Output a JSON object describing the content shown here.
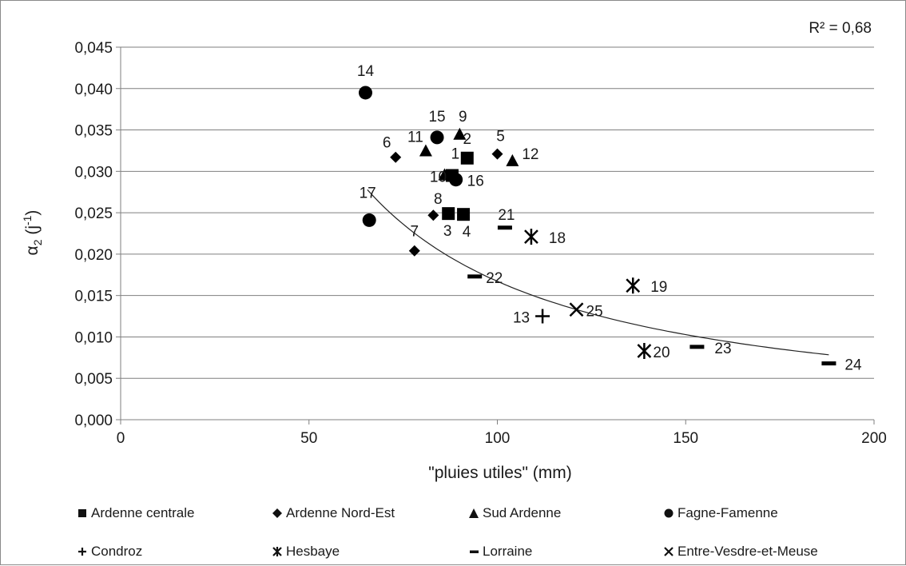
{
  "chart_data": {
    "type": "scatter",
    "xlabel": "\"pluies utiles\" (mm)",
    "ylabel_main": "α",
    "ylabel_sub": "2",
    "ylabel_unit": " (j",
    "ylabel_sup": "-1",
    "ylabel_close": ")",
    "xlim": [
      0,
      200
    ],
    "ylim": [
      0,
      0.045
    ],
    "x_ticks": [
      {
        "value": 0,
        "label": "0"
      },
      {
        "value": 50,
        "label": "50"
      },
      {
        "value": 100,
        "label": "100"
      },
      {
        "value": 150,
        "label": "150"
      },
      {
        "value": 200,
        "label": "200"
      }
    ],
    "y_ticks": [
      {
        "value": 0,
        "label": "0,000"
      },
      {
        "value": 0.005,
        "label": "0,005"
      },
      {
        "value": 0.01,
        "label": "0,010"
      },
      {
        "value": 0.015,
        "label": "0,015"
      },
      {
        "value": 0.02,
        "label": "0,020"
      },
      {
        "value": 0.025,
        "label": "0,025"
      },
      {
        "value": 0.03,
        "label": "0,030"
      },
      {
        "value": 0.035,
        "label": "0,035"
      },
      {
        "value": 0.04,
        "label": "0,040"
      },
      {
        "value": 0.045,
        "label": "0,045"
      }
    ],
    "grid": "horizontal",
    "legend_position": "bottom",
    "r_squared_label": "R² = 0,68",
    "series": [
      {
        "name": "Ardenne centrale",
        "marker": "square",
        "points": [
          {
            "x": 92,
            "y": 0.0316,
            "label": "2"
          },
          {
            "x": 88,
            "y": 0.0295,
            "label": "1"
          },
          {
            "x": 87,
            "y": 0.0249,
            "label": "3"
          },
          {
            "x": 91,
            "y": 0.0248,
            "label": "4"
          }
        ]
      },
      {
        "name": "Ardenne Nord-Est",
        "marker": "diamond",
        "points": [
          {
            "x": 100,
            "y": 0.0321,
            "label": "5"
          },
          {
            "x": 73,
            "y": 0.0317,
            "label": "6"
          },
          {
            "x": 78,
            "y": 0.0204,
            "label": "7"
          },
          {
            "x": 83,
            "y": 0.0247,
            "label": "8"
          }
        ]
      },
      {
        "name": "Sud Ardenne",
        "marker": "triangle",
        "points": [
          {
            "x": 90,
            "y": 0.0344,
            "label": "9"
          },
          {
            "x": 86,
            "y": 0.0295,
            "label": "10"
          },
          {
            "x": 81,
            "y": 0.0324,
            "label": "11"
          },
          {
            "x": 104,
            "y": 0.0312,
            "label": "12"
          }
        ]
      },
      {
        "name": "Fagne-Famenne",
        "marker": "circle",
        "points": [
          {
            "x": 65,
            "y": 0.0395,
            "label": "14"
          },
          {
            "x": 84,
            "y": 0.0341,
            "label": "15"
          },
          {
            "x": 89,
            "y": 0.029,
            "label": "16"
          },
          {
            "x": 66,
            "y": 0.0241,
            "label": "17"
          }
        ]
      },
      {
        "name": "Condroz",
        "marker": "plus",
        "points": [
          {
            "x": 112,
            "y": 0.0125,
            "label": "13"
          }
        ]
      },
      {
        "name": "Hesbaye",
        "marker": "asterisk",
        "points": [
          {
            "x": 109,
            "y": 0.0221,
            "label": "18"
          },
          {
            "x": 136,
            "y": 0.0162,
            "label": "19"
          },
          {
            "x": 139,
            "y": 0.0083,
            "label": "20"
          }
        ]
      },
      {
        "name": "Lorraine",
        "marker": "dash",
        "points": [
          {
            "x": 102,
            "y": 0.0232,
            "label": "21"
          },
          {
            "x": 94,
            "y": 0.0173,
            "label": "22"
          },
          {
            "x": 153,
            "y": 0.0088,
            "label": "23"
          },
          {
            "x": 188,
            "y": 0.0068,
            "label": "24"
          }
        ]
      },
      {
        "name": "Entre-Vesdre-et-Meuse",
        "marker": "x",
        "points": [
          {
            "x": 121,
            "y": 0.0133,
            "label": "25"
          }
        ]
      }
    ],
    "trendline": {
      "type": "power",
      "coefficient": 4.2,
      "exponent": -1.2,
      "x_range": [
        65.5,
        188
      ]
    }
  }
}
